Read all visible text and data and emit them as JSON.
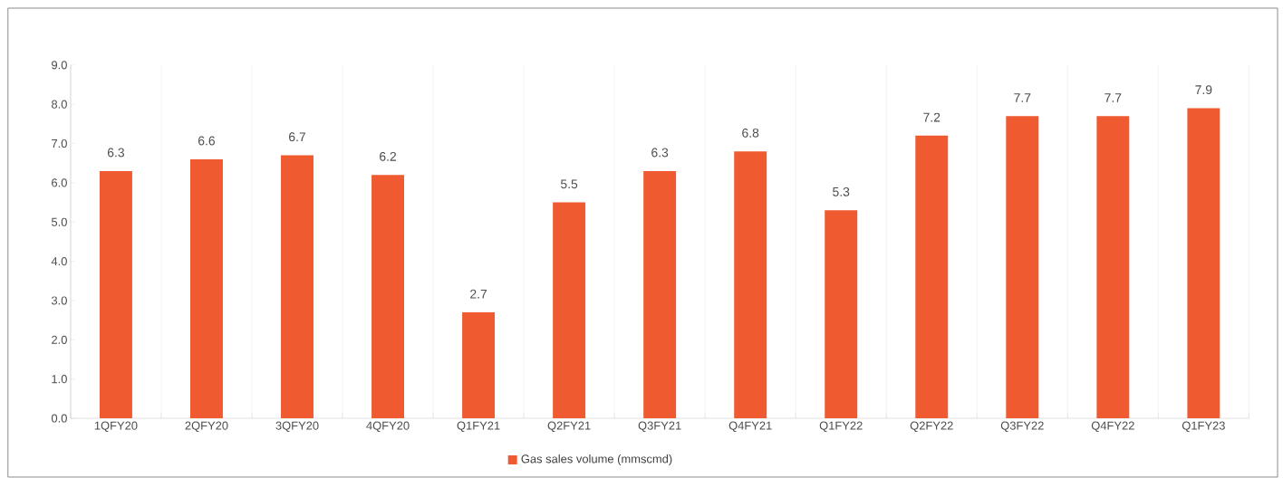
{
  "chart_data": {
    "type": "bar",
    "categories": [
      "1QFY20",
      "2QFY20",
      "3QFY20",
      "4QFY20",
      "Q1FY21",
      "Q2FY21",
      "Q3FY21",
      "Q4FY21",
      "Q1FY22",
      "Q2FY22",
      "Q3FY22",
      "Q4FY22",
      "Q1FY23"
    ],
    "series": [
      {
        "name": "Gas sales volume (mmscmd)",
        "color": "#f05a30",
        "values": [
          6.3,
          6.6,
          6.7,
          6.2,
          2.7,
          5.5,
          6.3,
          6.8,
          5.3,
          7.2,
          7.7,
          7.7,
          7.9
        ]
      }
    ],
    "ylim": [
      0,
      9
    ],
    "yticks": [
      {
        "value": 0,
        "label": "0.0"
      },
      {
        "value": 1,
        "label": "1.0"
      },
      {
        "value": 2,
        "label": "2.0"
      },
      {
        "value": 3,
        "label": "3.0"
      },
      {
        "value": 4,
        "label": "4.0"
      },
      {
        "value": 5,
        "label": "5.0"
      },
      {
        "value": 6,
        "label": "6.0"
      },
      {
        "value": 7,
        "label": "7.0"
      },
      {
        "value": 8,
        "label": "8.0"
      },
      {
        "value": 9,
        "label": "9.0"
      }
    ],
    "data_labels": true,
    "grid": "x",
    "legend": "bottom"
  }
}
